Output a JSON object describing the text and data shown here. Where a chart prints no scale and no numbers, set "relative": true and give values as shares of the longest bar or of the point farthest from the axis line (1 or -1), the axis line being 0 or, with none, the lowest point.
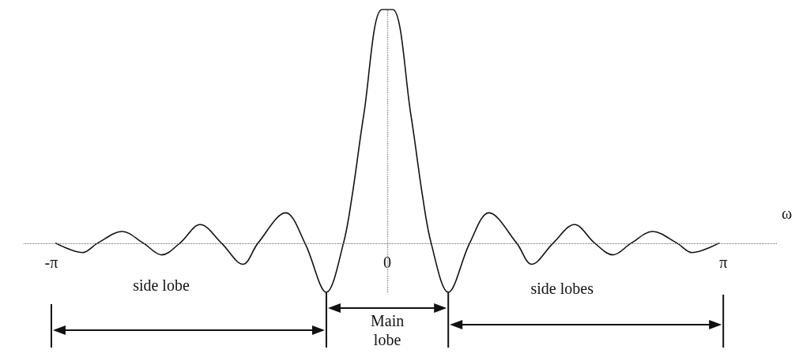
{
  "chart_data": {
    "type": "line",
    "relative": true,
    "xlabel": "ω",
    "x": [
      -3.1,
      -2.85,
      -2.71,
      -2.48,
      -2.28,
      -2.11,
      -1.94,
      -1.75,
      -1.55,
      -1.35,
      -1.21,
      -0.95,
      -0.77,
      -0.57,
      -0.41,
      -0.33,
      -0.22,
      -0.05,
      0.05,
      0.22,
      0.33,
      0.41,
      0.57,
      0.77,
      0.95,
      1.21,
      1.35,
      1.55,
      1.75,
      1.94,
      2.11,
      2.28,
      2.48,
      2.71,
      2.85,
      3.1
    ],
    "series": [
      {
        "color": "#111111",
        "values": [
          0,
          -0.04,
          0,
          0.05,
          0,
          -0.05,
          0,
          0.08,
          0,
          -0.09,
          0,
          0.13,
          0,
          -0.21,
          0,
          0.2,
          0.55,
          1,
          1,
          0.55,
          0.2,
          0,
          -0.21,
          0,
          0.13,
          0,
          -0.09,
          0,
          0.08,
          0,
          -0.05,
          0,
          0.05,
          0,
          -0.04,
          0
        ]
      }
    ],
    "xlim": [
      -3.4,
      3.65
    ],
    "xticks": [
      {
        "value": -3.1416,
        "label": "-π"
      },
      0,
      {
        "value": 3.1416,
        "label": "π"
      }
    ],
    "ref_lines": [
      {
        "axis": "x",
        "value": 0,
        "line_style": "dotted",
        "color": "#888888"
      },
      {
        "axis": "y",
        "value": 0,
        "line_style": "dotted",
        "color": "#666666"
      }
    ],
    "annotations": [
      "side lobe",
      "Main lobe",
      "side lobes"
    ],
    "marker": "none",
    "line_style": "solid",
    "grid": false
  }
}
